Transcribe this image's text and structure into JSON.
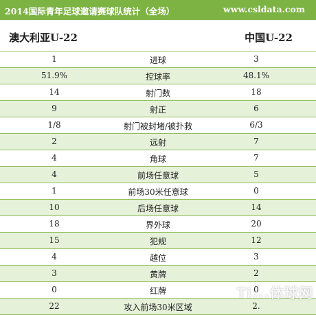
{
  "header": {
    "title": "2014国际青年足球邀请赛球队统计（全场）",
    "site": "www.csldata.com"
  },
  "teams": {
    "left": "澳大利亚U-22",
    "right": "中国U-22"
  },
  "rows": [
    {
      "left": "1",
      "label": "进球",
      "right": "3"
    },
    {
      "left": "51.9%",
      "label": "控球率",
      "right": "48.1%"
    },
    {
      "left": "14",
      "label": "射门数",
      "right": "18"
    },
    {
      "left": "9",
      "label": "射正",
      "right": "6"
    },
    {
      "left": "1/8",
      "label": "射门被封堵/被扑救",
      "right": "6/3"
    },
    {
      "left": "2",
      "label": "远射",
      "right": "7"
    },
    {
      "left": "4",
      "label": "角球",
      "right": "7"
    },
    {
      "left": "4",
      "label": "前场任意球",
      "right": "5"
    },
    {
      "left": "1",
      "label": "前场30米任意球",
      "right": "0"
    },
    {
      "left": "10",
      "label": "后场任意球",
      "right": "14"
    },
    {
      "left": "18",
      "label": "界外球",
      "right": "20"
    },
    {
      "left": "15",
      "label": "犯规",
      "right": "12"
    },
    {
      "left": "4",
      "label": "越位",
      "right": "3"
    },
    {
      "left": "3",
      "label": "黄牌",
      "right": "2"
    },
    {
      "left": "0",
      "label": "红牌",
      "right": "0"
    },
    {
      "left": "22",
      "label": "攻入前场30米区域",
      "right": "2."
    }
  ],
  "watermark": "Ti...体球网"
}
